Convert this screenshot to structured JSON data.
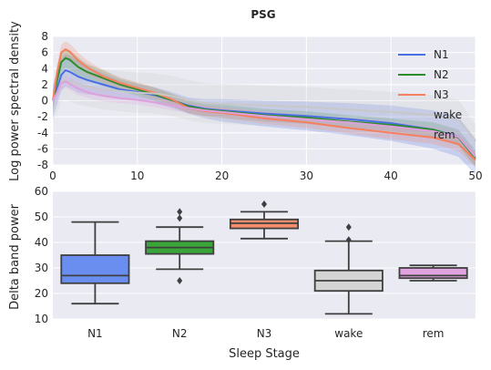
{
  "chart_data": [
    {
      "type": "line",
      "title": "PSG",
      "xlabel": "",
      "ylabel": "Log power spectral density",
      "xlim": [
        0,
        50
      ],
      "ylim": [
        -8,
        8
      ],
      "xticks": [
        "0",
        "10",
        "20",
        "30",
        "40",
        "50"
      ],
      "yticks": [
        "8",
        "6",
        "4",
        "2",
        "0",
        "-2",
        "-4",
        "-6",
        "-8"
      ],
      "grid": true,
      "legend": "top-right",
      "series": [
        {
          "name": "N1",
          "color": "#4a6fe3",
          "x": [
            0,
            0.5,
            1,
            1.5,
            2,
            3,
            4,
            5,
            6,
            8,
            10,
            12,
            14,
            16,
            18,
            20,
            25,
            30,
            35,
            40,
            45,
            48,
            50
          ],
          "y": [
            0,
            1.5,
            3.2,
            3.8,
            3.6,
            3.0,
            2.6,
            2.3,
            2.0,
            1.4,
            1.1,
            0.7,
            0.1,
            -0.6,
            -1.0,
            -1.2,
            -1.6,
            -1.9,
            -2.3,
            -2.8,
            -3.6,
            -4.5,
            -7.0
          ],
          "band": [
            2.0,
            2.0,
            2.0,
            2.0,
            2.0,
            2.0,
            1.8,
            1.6,
            1.4,
            1.2,
            1.0,
            1.0,
            1.0,
            1.0,
            1.2,
            1.4,
            1.6,
            1.8,
            2.0,
            2.2,
            2.4,
            2.5,
            2.2
          ]
        },
        {
          "name": "N2",
          "color": "#2e8b2e",
          "x": [
            0,
            0.5,
            1,
            1.5,
            2,
            3,
            4,
            5,
            6,
            8,
            10,
            12,
            14,
            16,
            18,
            20,
            25,
            30,
            35,
            40,
            45,
            48,
            50
          ],
          "y": [
            0,
            2.5,
            4.8,
            5.3,
            5.1,
            4.2,
            3.6,
            3.2,
            2.8,
            2.0,
            1.4,
            0.8,
            0.1,
            -0.7,
            -1.1,
            -1.3,
            -1.8,
            -2.1,
            -2.6,
            -3.0,
            -3.6,
            -4.6,
            -7.2
          ],
          "band": [
            1.2,
            1.2,
            1.2,
            1.2,
            1.2,
            1.2,
            1.0,
            1.0,
            1.0,
            0.8,
            0.8,
            0.8,
            0.8,
            0.8,
            0.8,
            0.8,
            0.8,
            0.8,
            0.8,
            0.8,
            0.9,
            1.0,
            1.0
          ]
        },
        {
          "name": "N3",
          "color": "#f58060",
          "x": [
            0,
            0.5,
            1,
            1.5,
            2,
            3,
            4,
            5,
            6,
            8,
            10,
            12,
            14,
            16,
            18,
            20,
            25,
            30,
            35,
            40,
            45,
            48,
            50
          ],
          "y": [
            0,
            3.5,
            6.0,
            6.4,
            6.1,
            5.0,
            4.2,
            3.6,
            3.0,
            2.2,
            1.6,
            1.0,
            0.2,
            -0.9,
            -1.3,
            -1.5,
            -2.2,
            -2.7,
            -3.4,
            -4.0,
            -4.6,
            -5.4,
            -7.4
          ],
          "band": [
            1.0,
            1.0,
            1.0,
            1.0,
            1.0,
            1.0,
            0.9,
            0.8,
            0.8,
            0.7,
            0.7,
            0.7,
            0.7,
            0.7,
            0.7,
            0.7,
            0.7,
            0.7,
            0.7,
            0.8,
            0.8,
            0.9,
            0.9
          ]
        },
        {
          "name": "wake",
          "color": "#c8c8c8",
          "x": [
            0,
            0.5,
            1,
            1.5,
            2,
            3,
            4,
            5,
            6,
            8,
            10,
            12,
            14,
            16,
            18,
            20,
            25,
            30,
            35,
            40,
            45,
            48,
            50
          ],
          "y": [
            0,
            1.0,
            2.4,
            2.6,
            2.4,
            2.0,
            1.8,
            1.6,
            1.4,
            1.2,
            1.0,
            0.9,
            0.6,
            0.1,
            -0.3,
            -0.4,
            -0.6,
            -0.8,
            -1.1,
            -1.4,
            -1.8,
            -2.4,
            -5.0
          ],
          "band": [
            2.5,
            2.5,
            2.5,
            2.5,
            2.5,
            2.5,
            2.5,
            2.5,
            2.5,
            2.5,
            2.5,
            2.5,
            2.5,
            2.5,
            2.5,
            2.5,
            2.5,
            2.5,
            2.5,
            2.5,
            2.5,
            2.5,
            2.0
          ]
        },
        {
          "name": "rem",
          "color": "#dda0dd",
          "x": [
            0,
            0.5,
            1,
            1.5,
            2,
            3,
            4,
            5,
            6,
            8,
            10,
            12,
            14,
            16,
            18,
            20,
            25,
            30,
            35,
            40,
            45,
            48,
            50
          ],
          "y": [
            0,
            1.0,
            2.2,
            2.4,
            2.1,
            1.5,
            1.1,
            0.8,
            0.6,
            0.3,
            0.1,
            -0.2,
            -0.6,
            -0.9,
            -1.2,
            -1.4,
            -1.9,
            -2.3,
            -2.7,
            -3.2,
            -3.8,
            -4.5,
            -7.0
          ],
          "band": [
            0.8,
            0.8,
            0.8,
            0.8,
            0.8,
            0.8,
            0.7,
            0.7,
            0.7,
            0.6,
            0.6,
            0.6,
            0.6,
            0.6,
            0.6,
            0.6,
            0.6,
            0.6,
            0.6,
            0.7,
            0.7,
            0.8,
            0.8
          ]
        }
      ]
    },
    {
      "type": "box",
      "xlabel": "Sleep Stage",
      "ylabel": "Delta band power",
      "ylim": [
        10,
        60
      ],
      "yticks": [
        "10",
        "20",
        "30",
        "40",
        "50",
        "60"
      ],
      "grid": true,
      "categories": [
        "N1",
        "N2",
        "N3",
        "wake",
        "rem"
      ],
      "boxes": [
        {
          "name": "N1",
          "color": "#6a8ef0",
          "whislo": 16,
          "q1": 24,
          "med": 27,
          "q3": 35,
          "whishi": 48,
          "fliers": []
        },
        {
          "name": "N2",
          "color": "#3aa63a",
          "whislo": 29.5,
          "q1": 35.5,
          "med": 38,
          "q3": 40.5,
          "whishi": 46,
          "fliers": [
            25,
            49.5,
            52
          ]
        },
        {
          "name": "N3",
          "color": "#f58d6c",
          "whislo": 41.5,
          "q1": 45.5,
          "med": 47.5,
          "q3": 49,
          "whishi": 52,
          "fliers": [
            55
          ]
        },
        {
          "name": "wake",
          "color": "#d4d4d4",
          "whislo": 12,
          "q1": 21,
          "med": 25,
          "q3": 29,
          "whishi": 40.5,
          "fliers": [
            41,
            46
          ]
        },
        {
          "name": "rem",
          "color": "#e2a3e2",
          "whislo": 25,
          "q1": 26,
          "med": 27,
          "q3": 30,
          "whishi": 31,
          "fliers": []
        }
      ]
    }
  ]
}
